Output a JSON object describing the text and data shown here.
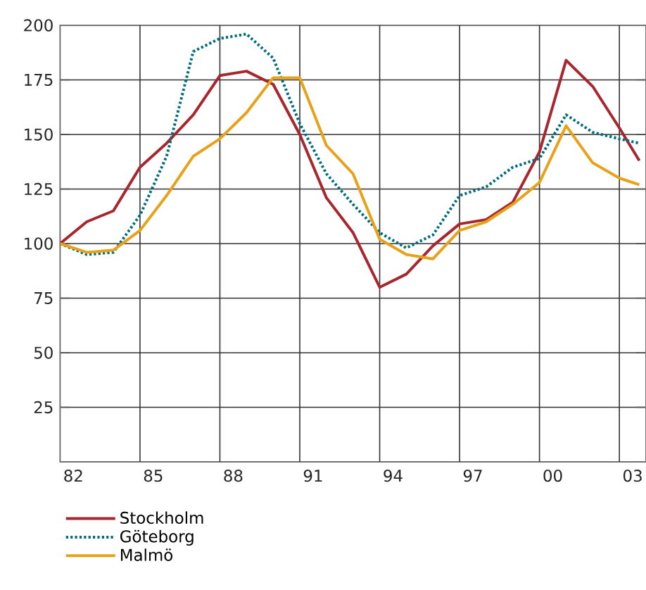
{
  "chart_data": {
    "type": "line",
    "x": [
      1981.5,
      1982.5,
      1983.5,
      1984.5,
      1985.5,
      1986.5,
      1987.5,
      1988.5,
      1989.5,
      1990.5,
      1991.5,
      1992.5,
      1993.5,
      1994.5,
      1995.5,
      1996.5,
      1997.5,
      1998.5,
      1999.5,
      2000.5,
      2001.5,
      2002.5,
      2003.25
    ],
    "series": [
      {
        "name": "Stockholm",
        "color": "#a8262e",
        "line_style": "solid",
        "values": [
          100,
          110,
          115,
          135,
          146,
          159,
          177,
          179,
          173,
          150,
          121,
          105,
          80,
          86,
          99,
          109,
          111,
          119,
          142,
          184,
          172,
          153,
          138
        ]
      },
      {
        "name": "Göteborg",
        "color": "#006d7e",
        "line_style": "dotted",
        "values": [
          100,
          95,
          96,
          113,
          140,
          188,
          194,
          196,
          185,
          155,
          132,
          118,
          105,
          98,
          104,
          122,
          126,
          135,
          139,
          159,
          151,
          148,
          146
        ]
      },
      {
        "name": "Malmö",
        "color": "#e8a21a",
        "line_style": "solid",
        "values": [
          100,
          96,
          97,
          106,
          122,
          140,
          148,
          160,
          176,
          176,
          145,
          132,
          102,
          95,
          93,
          106,
          110,
          118,
          128,
          154,
          137,
          130,
          127
        ]
      }
    ],
    "xlim": [
      1981.5,
      2003.5
    ],
    "xticks": [
      {
        "value": 1982,
        "label": "82"
      },
      {
        "value": 1985,
        "label": "85"
      },
      {
        "value": 1988,
        "label": "88"
      },
      {
        "value": 1991,
        "label": "91"
      },
      {
        "value": 1994,
        "label": "94"
      },
      {
        "value": 1997,
        "label": "97"
      },
      {
        "value": 2000,
        "label": "00"
      },
      {
        "value": 2003,
        "label": "03"
      },
      {
        "value": 1984.5,
        "label": null
      },
      {
        "value": 1987.5,
        "label": null
      },
      {
        "value": 1990.5,
        "label": null
      },
      {
        "value": 1993.5,
        "label": null
      },
      {
        "value": 1996.5,
        "label": null
      },
      {
        "value": 1999.5,
        "label": null
      },
      {
        "value": 2002.5,
        "label": null
      }
    ],
    "ylim": [
      0,
      200
    ],
    "yticks": [
      25,
      50,
      75,
      100,
      125,
      150,
      175,
      200
    ],
    "grid": true,
    "legend": "bottom left"
  }
}
